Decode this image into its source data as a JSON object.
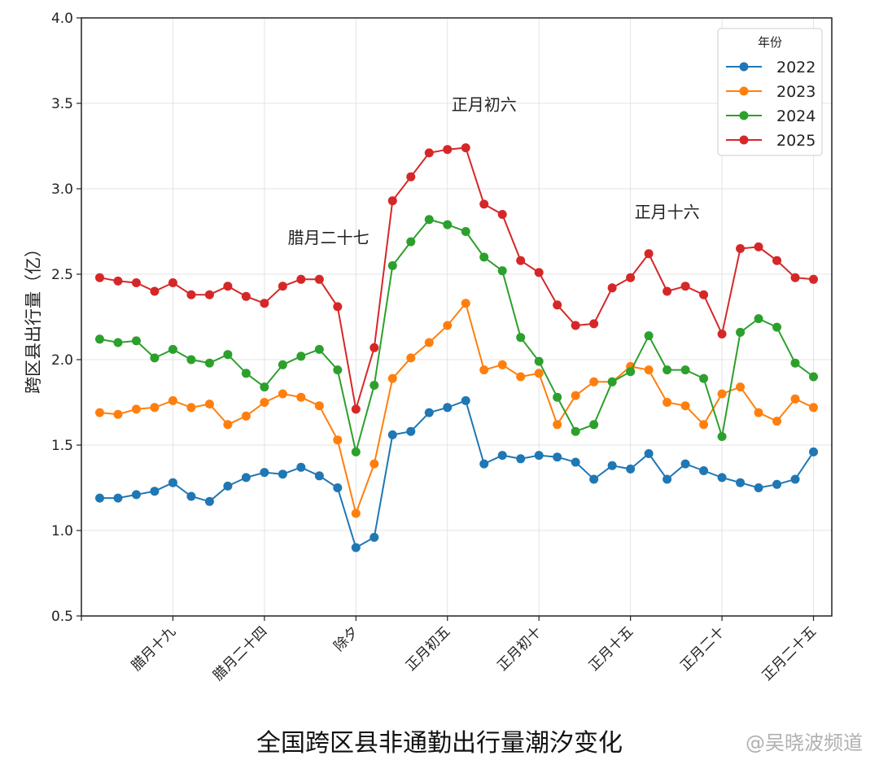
{
  "caption": "全国跨区县非通勤出行量潮汐变化",
  "watermark": "@吴晓波频道",
  "chart_data": {
    "type": "line",
    "title": "",
    "ylabel": "跨区县出行量（亿）",
    "xlabel": "",
    "ylim": [
      0.5,
      4.0
    ],
    "yticks": [
      "0.5",
      "1.0",
      "1.5",
      "2.0",
      "2.5",
      "3.0",
      "3.5",
      "4.0"
    ],
    "ytick_values": [
      0.5,
      1.0,
      1.5,
      2.0,
      2.5,
      3.0,
      3.5,
      4.0
    ],
    "xlim": [
      -1,
      40
    ],
    "x_tick_positions": [
      4,
      9,
      14,
      19,
      24,
      29,
      34,
      39
    ],
    "x_tick_labels": [
      "腊月十九",
      "腊月二十四",
      "除夕",
      "正月初五",
      "正月初十",
      "正月十五",
      "正月二十",
      "正月二十五"
    ],
    "grid": true,
    "legend": {
      "title": "年份",
      "placement": "top-right"
    },
    "series": [
      {
        "name": "2022",
        "color": "#1f77b4",
        "values": [
          1.19,
          1.19,
          1.21,
          1.23,
          1.28,
          1.2,
          1.17,
          1.26,
          1.31,
          1.34,
          1.33,
          1.37,
          1.32,
          1.25,
          0.9,
          0.96,
          1.56,
          1.58,
          1.69,
          1.72,
          1.76,
          1.39,
          1.44,
          1.42,
          1.44,
          1.43,
          1.4,
          1.3,
          1.38,
          1.36,
          1.45,
          1.3,
          1.39,
          1.35,
          1.31,
          1.28,
          1.25,
          1.27,
          1.3,
          1.46
        ]
      },
      {
        "name": "2023",
        "color": "#ff7f0e",
        "values": [
          1.69,
          1.68,
          1.71,
          1.72,
          1.76,
          1.72,
          1.74,
          1.62,
          1.67,
          1.75,
          1.8,
          1.78,
          1.73,
          1.53,
          1.1,
          1.39,
          1.89,
          2.01,
          2.1,
          2.2,
          2.33,
          1.94,
          1.97,
          1.9,
          1.92,
          1.62,
          1.79,
          1.87,
          1.87,
          1.96,
          1.94,
          1.75,
          1.73,
          1.62,
          1.8,
          1.84,
          1.69,
          1.64,
          1.77,
          1.72
        ]
      },
      {
        "name": "2024",
        "color": "#2ca02c",
        "values": [
          2.12,
          2.1,
          2.11,
          2.01,
          2.06,
          2.0,
          1.98,
          2.03,
          1.92,
          1.84,
          1.97,
          2.02,
          2.06,
          1.94,
          1.46,
          1.85,
          2.55,
          2.69,
          2.82,
          2.79,
          2.75,
          2.6,
          2.52,
          2.13,
          1.99,
          1.78,
          1.58,
          1.62,
          1.87,
          1.93,
          2.14,
          1.94,
          1.94,
          1.89,
          1.55,
          2.16,
          2.24,
          2.19,
          1.98,
          1.9
        ]
      },
      {
        "name": "2025",
        "color": "#d62728",
        "values": [
          2.48,
          2.46,
          2.45,
          2.4,
          2.45,
          2.38,
          2.38,
          2.43,
          2.37,
          2.33,
          2.43,
          2.47,
          2.47,
          2.31,
          1.71,
          2.07,
          2.93,
          3.07,
          3.21,
          3.23,
          3.24,
          2.91,
          2.85,
          2.58,
          2.51,
          2.32,
          2.2,
          2.21,
          2.42,
          2.48,
          2.62,
          2.4,
          2.43,
          2.38,
          2.15,
          2.65,
          2.66,
          2.58,
          2.48,
          2.47
        ]
      }
    ],
    "annotations": [
      {
        "text": "腊月二十七",
        "x": 12.5,
        "y": 2.68
      },
      {
        "text": "正月初六",
        "x": 21,
        "y": 3.46
      },
      {
        "text": "正月十六",
        "x": 31,
        "y": 2.83
      }
    ]
  }
}
